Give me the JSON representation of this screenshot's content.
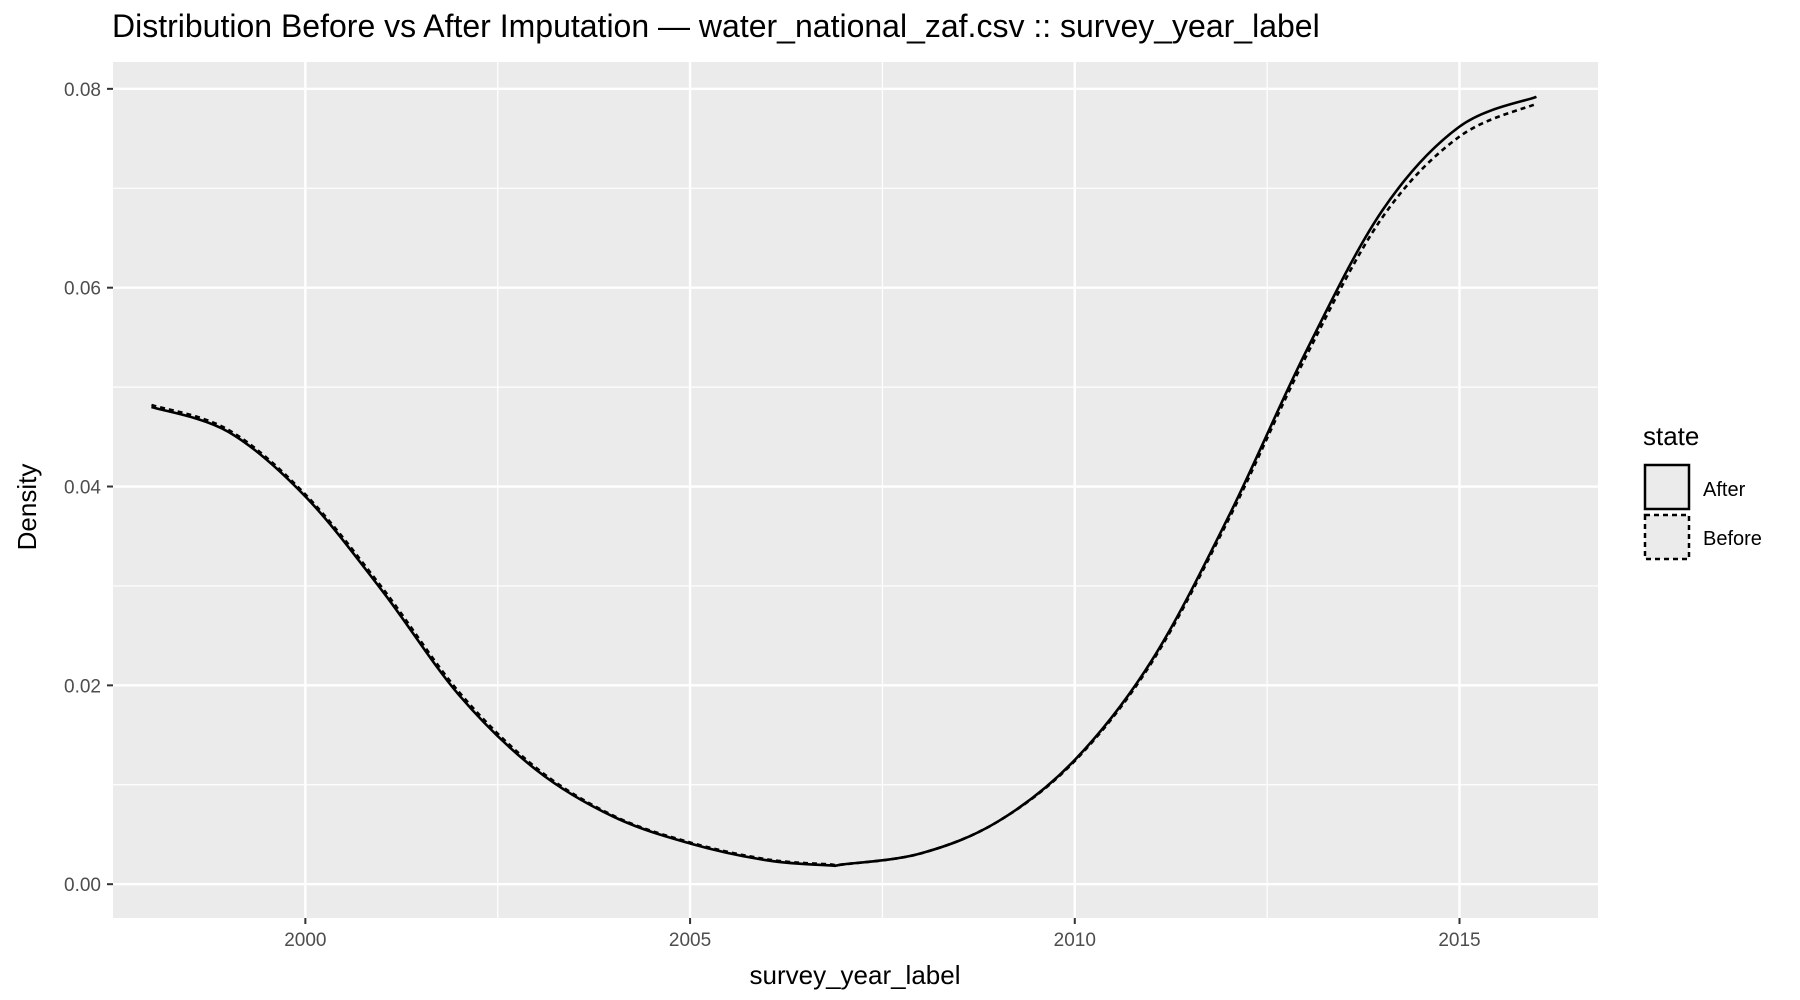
{
  "chart_data": {
    "type": "line",
    "title": "Distribution Before vs After Imputation — water_national_zaf.csv :: survey_year_label",
    "xlabel": "survey_year_label",
    "ylabel": "Density",
    "xlim": [
      1997.5,
      2016.8
    ],
    "ylim": [
      -0.0034,
      0.0827
    ],
    "x_ticks": [
      2000,
      2005,
      2010,
      2015
    ],
    "x_tick_labels": [
      "2000",
      "2005",
      "2010",
      "2015"
    ],
    "y_ticks": [
      0,
      0.02,
      0.04,
      0.06,
      0.08
    ],
    "y_tick_labels": [
      "0.00",
      "0.02",
      "0.04",
      "0.06",
      "0.08"
    ],
    "grid": true,
    "legend": {
      "title": "state",
      "position": "right"
    },
    "background_color": "#ebebeb",
    "grid_color": "#ffffff",
    "series": [
      {
        "name": "After",
        "line_style": "solid",
        "color": "#000000",
        "x": [
          1998,
          1999,
          2000,
          2001,
          2002,
          2003,
          2004,
          2005,
          2006,
          2006.8,
          2007,
          2008,
          2009,
          2010,
          2011,
          2012,
          2013,
          2014,
          2015,
          2016
        ],
        "y": [
          0.048,
          0.0455,
          0.039,
          0.0295,
          0.019,
          0.0115,
          0.0068,
          0.0041,
          0.0024,
          0.0019,
          0.002,
          0.0031,
          0.0063,
          0.0125,
          0.0225,
          0.037,
          0.0535,
          0.0678,
          0.0762,
          0.0792
        ]
      },
      {
        "name": "Before",
        "line_style": "dashed",
        "color": "#000000",
        "x": [
          1998,
          1999,
          2000,
          2001,
          2002,
          2003,
          2004,
          2005,
          2006,
          2006.8,
          2007,
          2008,
          2009,
          2010,
          2011,
          2012,
          2013,
          2014,
          2015,
          2016
        ],
        "y": [
          0.0482,
          0.0457,
          0.0392,
          0.0298,
          0.0193,
          0.0117,
          0.0069,
          0.0042,
          0.0025,
          0.002,
          0.002,
          0.0031,
          0.0063,
          0.0124,
          0.0223,
          0.0367,
          0.053,
          0.0671,
          0.0752,
          0.0785
        ]
      }
    ]
  }
}
